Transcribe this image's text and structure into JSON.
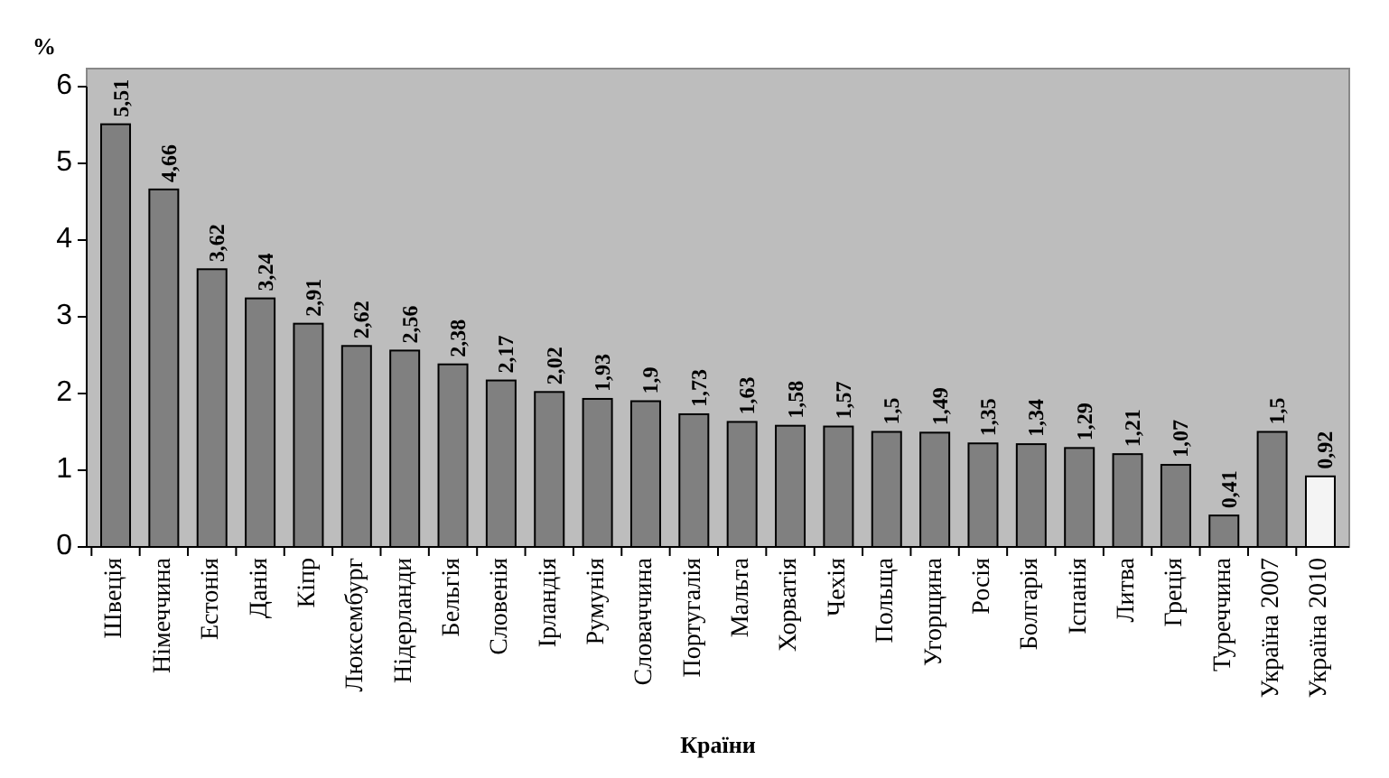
{
  "chart_data": {
    "type": "bar",
    "xlabel": "Країни",
    "ylabel": "%",
    "categories": [
      "Швеція",
      "Німеччина",
      "Естонія",
      "Данія",
      "Кіпр",
      "Люксембург",
      "Нідерланди",
      "Бельгія",
      "Словенія",
      "Ірландія",
      "Румунія",
      "Словаччина",
      "Португалія",
      "Мальта",
      "Хорватія",
      "Чехія",
      "Польща",
      "Угорщина",
      "Росія",
      "Болгарія",
      "Іспанія",
      "Литва",
      "Греція",
      "Туреччина",
      "Україна 2007",
      "Україна 2010"
    ],
    "values": [
      5.51,
      4.66,
      3.62,
      3.24,
      2.91,
      2.62,
      2.56,
      2.38,
      2.17,
      2.02,
      1.93,
      1.9,
      1.73,
      1.63,
      1.58,
      1.57,
      1.5,
      1.49,
      1.35,
      1.34,
      1.29,
      1.21,
      1.07,
      0.41,
      1.5,
      0.92
    ],
    "value_labels": [
      "5,51",
      "4,66",
      "3,62",
      "3,24",
      "2,91",
      "2,62",
      "2,56",
      "2,38",
      "2,17",
      "2,02",
      "1,93",
      "1,9",
      "1,73",
      "1,63",
      "1,58",
      "1,57",
      "1,5",
      "1,49",
      "1,35",
      "1,34",
      "1,29",
      "1,21",
      "1,07",
      "0,41",
      "1,5",
      "0,92"
    ],
    "colors": [
      "#808080",
      "#808080",
      "#808080",
      "#808080",
      "#808080",
      "#808080",
      "#808080",
      "#808080",
      "#808080",
      "#808080",
      "#808080",
      "#808080",
      "#808080",
      "#808080",
      "#808080",
      "#808080",
      "#808080",
      "#808080",
      "#808080",
      "#808080",
      "#808080",
      "#808080",
      "#808080",
      "#808080",
      "#808080",
      "#f4f4f4"
    ],
    "ylim": [
      0,
      6
    ],
    "yticks": [
      0,
      1,
      2,
      3,
      4,
      5,
      6
    ]
  }
}
